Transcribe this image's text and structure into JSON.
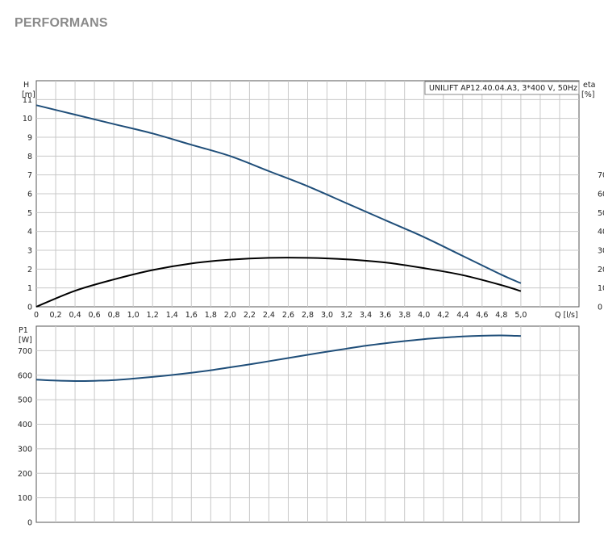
{
  "page": {
    "title": "PERFORMANS"
  },
  "colors": {
    "blue": "#1f4e79",
    "black": "#000000",
    "grid": "#c8c8c8",
    "frame": "#555555"
  },
  "chart_data": [
    {
      "type": "line",
      "legend": "UNILIFT AP12.40.04.A3, 3*400 V, 50Hz",
      "legend_position": "top-right",
      "grid": true,
      "xlabel": "Q [l/s]",
      "ylabel_left": [
        "H",
        "[m]"
      ],
      "ylabel_right": [
        "eta",
        "[%]"
      ],
      "xlim": [
        0,
        5.6
      ],
      "ylim_left": [
        0,
        12
      ],
      "ylim_right": [
        0,
        120
      ],
      "x_ticks": [
        "0",
        "0,2",
        "0,4",
        "0,6",
        "0,8",
        "1,0",
        "1,2",
        "1,4",
        "1,6",
        "1,8",
        "2,0",
        "2,2",
        "2,4",
        "2,6",
        "2,8",
        "3,0",
        "3,2",
        "3,4",
        "3,6",
        "3,8",
        "4,0",
        "4,2",
        "4,4",
        "4,6",
        "4,8",
        "5,0"
      ],
      "y_ticks_left": [
        "0",
        "1",
        "2",
        "3",
        "4",
        "5",
        "6",
        "7",
        "8",
        "9",
        "10",
        "11"
      ],
      "y_ticks_right": [
        "0",
        "10",
        "20",
        "30",
        "40",
        "50",
        "60",
        "70"
      ],
      "series": [
        {
          "axis": "left",
          "color": "#1f4e79",
          "x": [
            0,
            0.4,
            0.8,
            1.2,
            1.6,
            2.0,
            2.4,
            2.8,
            3.2,
            3.6,
            4.0,
            4.4,
            4.8,
            5.0
          ],
          "y": [
            10.7,
            10.2,
            9.7,
            9.2,
            8.6,
            8.0,
            7.2,
            6.4,
            5.5,
            4.6,
            3.7,
            2.7,
            1.7,
            1.25
          ]
        },
        {
          "axis": "right",
          "color": "#000000",
          "x": [
            0,
            0.4,
            0.8,
            1.2,
            1.6,
            2.0,
            2.4,
            2.8,
            3.2,
            3.6,
            4.0,
            4.4,
            4.8,
            5.0
          ],
          "y": [
            0,
            8.5,
            14.5,
            19.5,
            23,
            25,
            26,
            26,
            25.2,
            23.5,
            20.5,
            16.8,
            11.5,
            8.3
          ]
        }
      ]
    },
    {
      "type": "line",
      "grid": true,
      "ylabel": [
        "P1",
        "[W]"
      ],
      "xlim": [
        0,
        5.6
      ],
      "ylim": [
        0,
        800
      ],
      "y_ticks": [
        "0",
        "100",
        "200",
        "300",
        "400",
        "500",
        "600",
        "700"
      ],
      "series": [
        {
          "color": "#1f4e79",
          "x": [
            0,
            0.2,
            0.4,
            0.6,
            0.8,
            1.0,
            1.2,
            1.4,
            1.6,
            1.8,
            2.0,
            2.2,
            2.4,
            2.6,
            2.8,
            3.0,
            3.2,
            3.4,
            3.6,
            3.8,
            4.0,
            4.2,
            4.4,
            4.6,
            4.8,
            5.0
          ],
          "y": [
            582,
            578,
            576,
            577,
            580,
            586,
            593,
            601,
            610,
            620,
            632,
            644,
            657,
            670,
            683,
            696,
            708,
            720,
            730,
            739,
            747,
            753,
            758,
            761,
            762,
            760
          ]
        }
      ]
    }
  ]
}
